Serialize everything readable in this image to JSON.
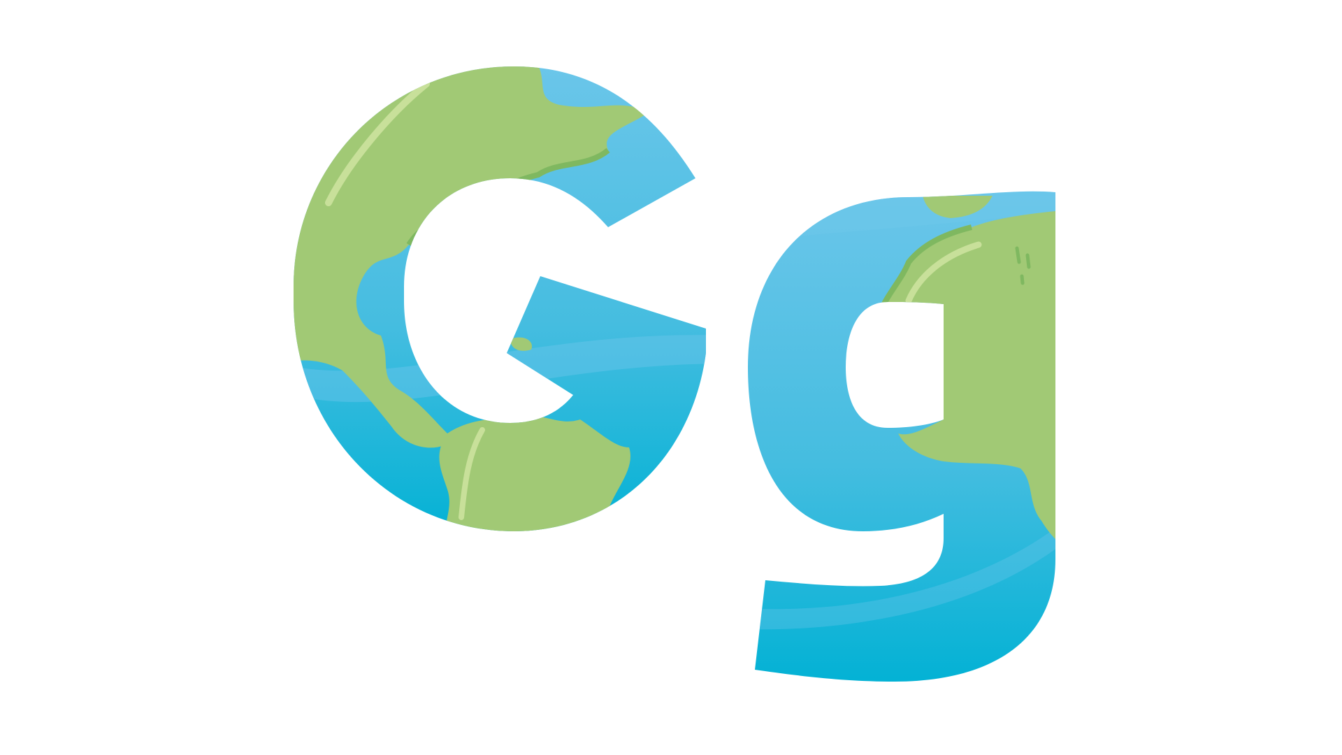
{
  "logo": {
    "letters": [
      "G",
      "g"
    ],
    "palette": {
      "ocean_light": "#6cc6ea",
      "ocean_mid": "#45bde0",
      "ocean_deep": "#00b1d4",
      "land": "#a1c975",
      "land_shadow": "#7fb860",
      "land_highlight": "#c8e09a",
      "background": "#ffffff"
    }
  }
}
